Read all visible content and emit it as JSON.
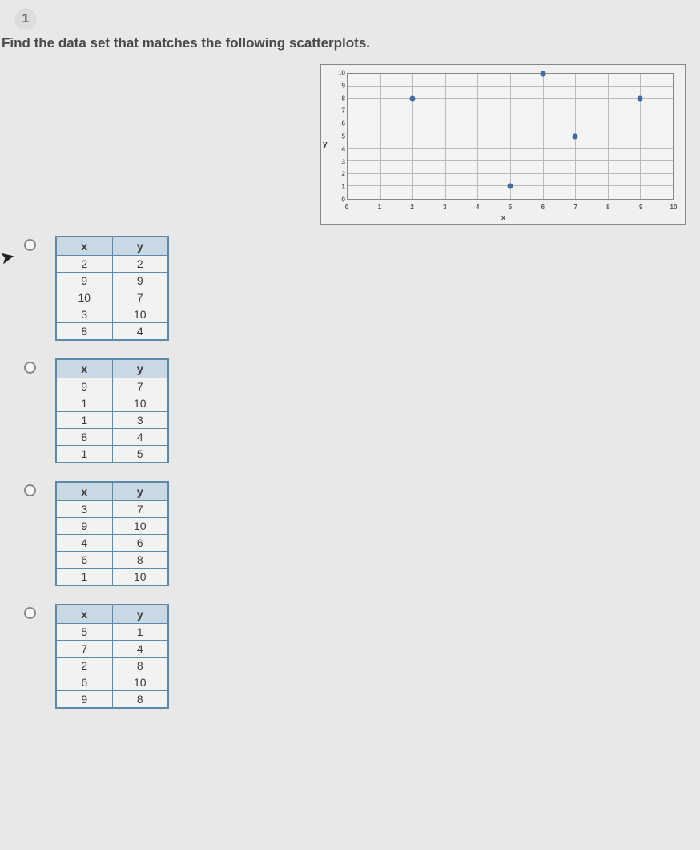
{
  "question_number": "1",
  "prompt": "Find the data set that matches the following scatterplots.",
  "chart": {
    "type": "scatter",
    "x_label": "x",
    "y_label": "y",
    "xlim": [
      0,
      10
    ],
    "ylim": [
      0,
      10
    ],
    "xticks": [
      0,
      1,
      2,
      3,
      4,
      5,
      6,
      7,
      8,
      9,
      10
    ],
    "yticks": [
      0,
      1,
      2,
      3,
      4,
      5,
      6,
      7,
      8,
      9,
      10
    ],
    "background_color": "#f4f4f4",
    "grid_color": "#bbbbbb",
    "border_color": "#888888",
    "dot_color": "#3a6ea5",
    "dot_radius": 3.5,
    "points": [
      {
        "x": 2,
        "y": 8
      },
      {
        "x": 5,
        "y": 1
      },
      {
        "x": 6,
        "y": 10
      },
      {
        "x": 7,
        "y": 5
      },
      {
        "x": 9,
        "y": 8
      }
    ]
  },
  "options": [
    {
      "header_x": "x",
      "header_y": "y",
      "rows": [
        [
          2,
          2
        ],
        [
          9,
          9
        ],
        [
          10,
          7
        ],
        [
          3,
          10
        ],
        [
          8,
          4
        ]
      ]
    },
    {
      "header_x": "x",
      "header_y": "y",
      "rows": [
        [
          9,
          7
        ],
        [
          1,
          10
        ],
        [
          1,
          3
        ],
        [
          8,
          4
        ],
        [
          1,
          5
        ]
      ]
    },
    {
      "header_x": "x",
      "header_y": "y",
      "rows": [
        [
          3,
          7
        ],
        [
          9,
          10
        ],
        [
          4,
          6
        ],
        [
          6,
          8
        ],
        [
          1,
          10
        ]
      ]
    },
    {
      "header_x": "x",
      "header_y": "y",
      "rows": [
        [
          5,
          1
        ],
        [
          7,
          4
        ],
        [
          2,
          8
        ],
        [
          6,
          10
        ],
        [
          9,
          8
        ]
      ]
    }
  ],
  "colors": {
    "table_border": "#5a8aa8",
    "table_header_bg": "#c8d8e4",
    "page_bg": "#e8e8e8"
  }
}
